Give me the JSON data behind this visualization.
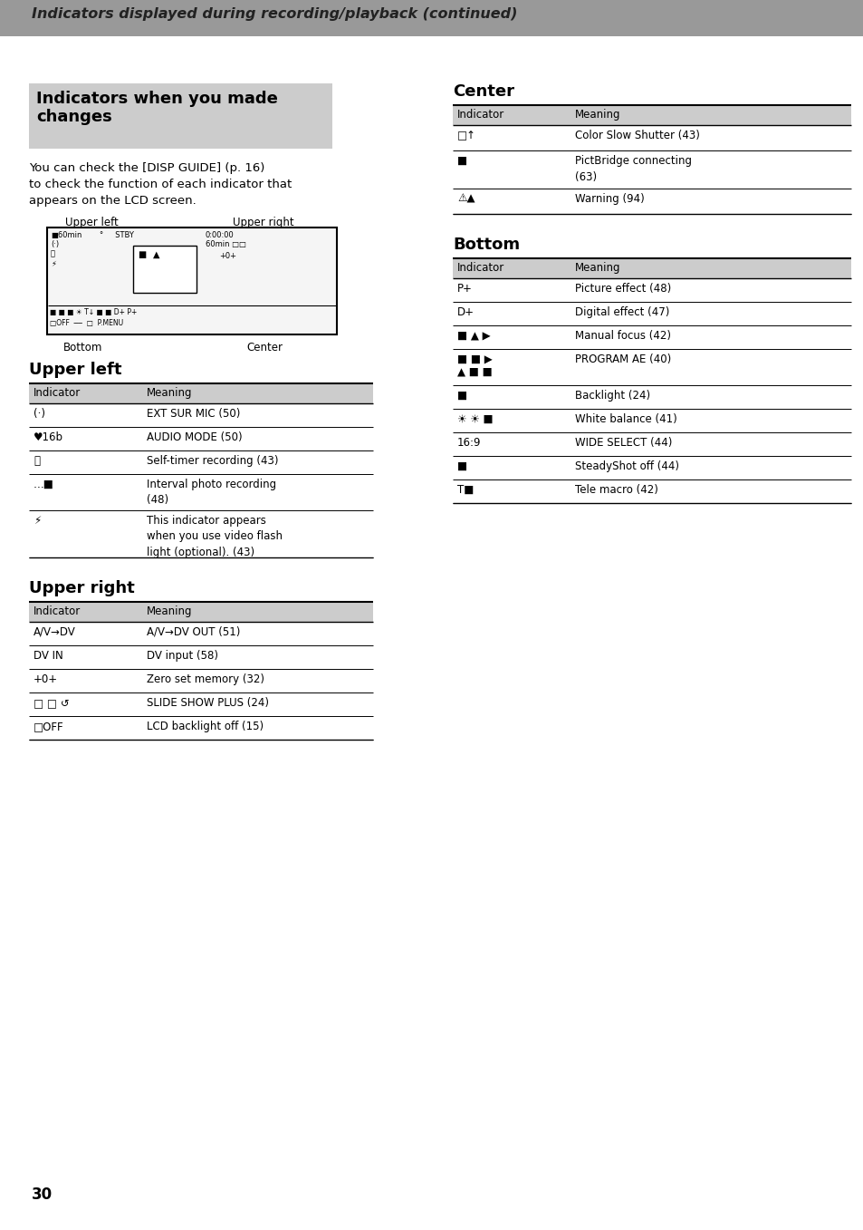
{
  "page_bg": "#ffffff",
  "header_bg": "#999999",
  "header_text": "Indicators displayed during recording/playback (continued)",
  "section_box_bg": "#cccccc",
  "section_box_title_line1": "Indicators when you made",
  "section_box_title_line2": "changes",
  "body_text_line1": "You can check the [DISP GUIDE] (p. 16)",
  "body_text_line2": "to check the function of each indicator that",
  "body_text_line3": "appears on the LCD screen.",
  "table_header_bg": "#cccccc",
  "col1_header": "Indicator",
  "col2_header": "Meaning",
  "section_upper_left": "Upper left",
  "section_upper_right": "Upper right",
  "section_center": "Center",
  "section_bottom": "Bottom",
  "page_number": "30",
  "gray_text_color": "#555555",
  "black": "#000000",
  "white": "#ffffff"
}
